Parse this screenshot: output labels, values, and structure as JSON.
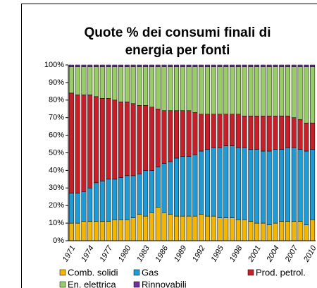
{
  "chart_data": {
    "type": "stacked_bar",
    "title": "Quote % dei consumi finali di energia per fonti",
    "categories": [
      "1971",
      null,
      null,
      "1974",
      null,
      null,
      "1977",
      null,
      null,
      "1980",
      null,
      null,
      "1983",
      null,
      null,
      "1986",
      null,
      null,
      "1989",
      null,
      null,
      "1992",
      null,
      null,
      "1995",
      null,
      null,
      "1998",
      null,
      null,
      "2001",
      null,
      null,
      "2004",
      null,
      null,
      "2007",
      null,
      null,
      "2010"
    ],
    "series": [
      {
        "name": "Comb. solidi",
        "color": "#f2b600",
        "values": [
          10,
          10,
          11,
          11,
          11,
          11,
          11,
          12,
          12,
          12,
          13,
          15,
          14,
          16,
          19,
          16,
          15,
          14,
          14,
          14,
          14,
          15,
          14,
          14,
          13,
          13,
          13,
          12,
          12,
          11,
          10,
          10,
          9,
          10,
          11,
          11,
          11,
          11,
          9,
          12
        ]
      },
      {
        "name": "Gas",
        "color": "#1e9ad6",
        "values": [
          17,
          17,
          17,
          19,
          22,
          23,
          24,
          23,
          24,
          25,
          24,
          23,
          26,
          24,
          23,
          28,
          30,
          33,
          34,
          34,
          35,
          36,
          38,
          39,
          40,
          41,
          41,
          41,
          41,
          41,
          42,
          41,
          42,
          42,
          41,
          42,
          42,
          41,
          42,
          40
        ]
      },
      {
        "name": "Prod. petrol.",
        "color": "#c8202a",
        "values": [
          57,
          56,
          55,
          53,
          49,
          47,
          46,
          45,
          43,
          42,
          41,
          39,
          37,
          36,
          33,
          30,
          29,
          27,
          26,
          26,
          24,
          21,
          20,
          19,
          19,
          18,
          18,
          19,
          18,
          19,
          19,
          20,
          20,
          19,
          19,
          18,
          17,
          17,
          16,
          15
        ]
      },
      {
        "name": "En. elettrica",
        "color": "#99cc66",
        "values": [
          15,
          16,
          16,
          16,
          17,
          18,
          18,
          19,
          20,
          20,
          21,
          22,
          22,
          23,
          24,
          25,
          25,
          25,
          25,
          25,
          26,
          27,
          27,
          27,
          27,
          27,
          27,
          27,
          28,
          28,
          28,
          28,
          28,
          28,
          28,
          28,
          29,
          30,
          32,
          32
        ]
      },
      {
        "name": "Rinnovabili",
        "color": "#7030a0",
        "values": [
          1,
          1,
          1,
          1,
          1,
          1,
          1,
          1,
          1,
          1,
          1,
          1,
          1,
          1,
          1,
          1,
          1,
          1,
          1,
          1,
          1,
          1,
          1,
          1,
          1,
          1,
          1,
          1,
          1,
          1,
          1,
          1,
          1,
          1,
          1,
          1,
          1,
          1,
          1,
          1
        ]
      }
    ],
    "ylim": [
      0,
      100
    ],
    "yticks": [
      {
        "value": 0,
        "label": "0%"
      },
      {
        "value": 10,
        "label": "10%"
      },
      {
        "value": 20,
        "label": "20%"
      },
      {
        "value": 30,
        "label": "30%"
      },
      {
        "value": 40,
        "label": "40%"
      },
      {
        "value": 50,
        "label": "50%"
      },
      {
        "value": 60,
        "label": "60%"
      },
      {
        "value": 70,
        "label": "70%"
      },
      {
        "value": 80,
        "label": "80%"
      },
      {
        "value": 90,
        "label": "90%"
      },
      {
        "value": 100,
        "label": "100%"
      }
    ],
    "legend": "bottom"
  }
}
